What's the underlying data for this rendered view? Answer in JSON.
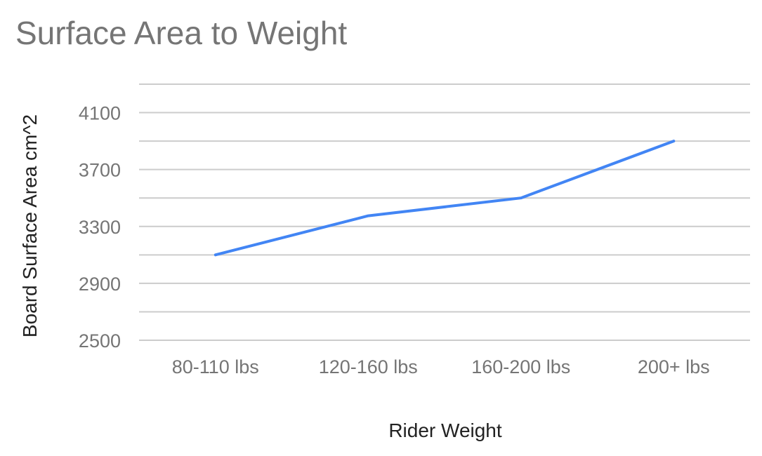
{
  "chart_data": {
    "type": "line",
    "title": "Surface Area to Weight",
    "xlabel": "Rider Weight",
    "ylabel": "Board Surface Area cm^2",
    "categories": [
      "80-110 lbs",
      "120-160 lbs",
      "160-200 lbs",
      "200+ lbs"
    ],
    "series": [
      {
        "values": [
          3100,
          3375,
          3500,
          3900
        ]
      }
    ],
    "ylim": [
      2500,
      4300
    ],
    "yticks": [
      2500,
      2900,
      3300,
      3700,
      4100
    ],
    "grid_step": 200,
    "grid": true,
    "legend": "none",
    "colors": {
      "series": "#4285f4",
      "grid": "#cccccc",
      "text": "#757575"
    }
  }
}
